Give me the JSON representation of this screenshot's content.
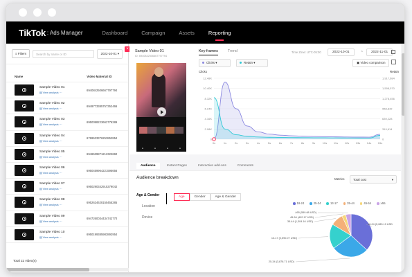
{
  "window": {
    "logo": "TikTok",
    "logo_sub": ": Ads Manager"
  },
  "nav": [
    "Dashboard",
    "Campaign",
    "Assets",
    "Reporting"
  ],
  "filterbar": {
    "filters": "Filters",
    "search_placeholder": "Search by name or ID",
    "date": "2022-10-01"
  },
  "table": {
    "headers": [
      "Name",
      "Video Material ID"
    ],
    "rows": [
      {
        "name": "Sample Video 01",
        "link": "View analysis",
        "id": "6940842506667797794"
      },
      {
        "name": "Sample Video 02",
        "link": "View analysis",
        "id": "6949773385757352466"
      },
      {
        "name": "Sample Video 03",
        "link": "View analysis",
        "id": "6950098223662776289"
      },
      {
        "name": "Sample Video 04",
        "link": "View analysis",
        "id": "6769533376253852854"
      },
      {
        "name": "Sample Video 05",
        "link": "View analysis",
        "id": "6946539871212322660"
      },
      {
        "name": "Sample Video 06",
        "link": "View analysis",
        "id": "6950459964221595656"
      },
      {
        "name": "Sample Video 07",
        "link": "View analysis",
        "id": "6950290342915379042"
      },
      {
        "name": "Sample Video 08",
        "link": "View analysis",
        "id": "6952624628155455285"
      },
      {
        "name": "Sample Video 09",
        "link": "View analysis",
        "id": "6947260034434742770"
      },
      {
        "name": "Sample Video 10",
        "link": "View analysis",
        "id": "6950199385983892954"
      }
    ],
    "total": "Total 22 video(s)"
  },
  "detail": {
    "title": "Sample Video 01",
    "subtitle": "ID: 6940842506667797794",
    "tabs": [
      "Key frames",
      "Trend"
    ],
    "timezone": "Time Zone: UTC-05:00",
    "date_from": "2022-10-01",
    "date_to": "2022-11-01",
    "date_sep": "~",
    "metric1": "Clicks",
    "metric2": "Retain",
    "video_comparison": "Video comparison",
    "axis_left_label": "Clicks",
    "axis_right_label": "Retain",
    "colors": {
      "clicks": "#8b88e0",
      "retain": "#2ec9d6",
      "accent": "#fe2c55"
    }
  },
  "chart_data": {
    "type": "line",
    "x": [
      "0s",
      "1s",
      "2s",
      "3s",
      "4s",
      "5s",
      "6s",
      "7s",
      "8s",
      "9s",
      "10s",
      "11s",
      "12s",
      "13s",
      "14s",
      "15s"
    ],
    "y_left_ticks": [
      "0",
      "2.08K",
      "4.16K",
      "6.24K",
      "8.32K",
      "10.40K",
      "12.48K"
    ],
    "y_right_ticks": [
      "0",
      "319,614",
      "639,228",
      "958,842",
      "1,278,456",
      "1,598,070",
      "1,917,684"
    ],
    "series": [
      {
        "name": "Clicks",
        "axis": "left",
        "values": [
          0,
          11700,
          6240,
          2700,
          1500,
          1040,
          830,
          700,
          620,
          560,
          520,
          480,
          450,
          430,
          420,
          1000
        ]
      },
      {
        "name": "Retain",
        "axis": "right",
        "values": [
          1310000,
          320000,
          140000,
          90000,
          70000,
          60000,
          55000,
          50000,
          48000,
          46000,
          44000,
          42000,
          40000,
          38000,
          36000,
          120000
        ]
      }
    ]
  },
  "bottom": {
    "tabs": [
      "Audience",
      "Instant Pages",
      "Interactive add-ons",
      "Comments"
    ],
    "breakdown_title": "Audience breakdown",
    "metrics_label": "Metrics",
    "metrics_value": "Total cost",
    "left_nav": [
      "Age & Gender",
      "Location",
      "Device"
    ],
    "seg_tabs": [
      "Age",
      "Gender",
      "Age & Gender"
    ]
  },
  "pie_data": {
    "type": "pie",
    "slices": [
      {
        "label": "18-24",
        "legend": "18-24",
        "text": "18-24 (5,083.19 USD)",
        "value": 5083.19,
        "color": "#6a6fd8"
      },
      {
        "label": "25-34",
        "legend": "25-34",
        "text": "25-34 (3,878.71 USD)",
        "value": 3878.71,
        "color": "#3ba8e8"
      },
      {
        "label": "13-17",
        "legend": "13-17",
        "text": "13-17 (2,590.07 USD)",
        "value": 2590.07,
        "color": "#35d1cd"
      },
      {
        "label": "35-44",
        "legend": "35-44",
        "text": "35-44 (1,304.16 USD)",
        "value": 1304.16,
        "color": "#f4b078"
      },
      {
        "label": "45-54",
        "legend": "45-54",
        "text": "45-54 (402.17 USD)",
        "value": 402.17,
        "color": "#f6d77a"
      },
      {
        "label": "≥55",
        "legend": "≥55",
        "text": "≥55 (559.68 USD)",
        "value": 559.68,
        "color": "#c9a3e6"
      }
    ]
  }
}
